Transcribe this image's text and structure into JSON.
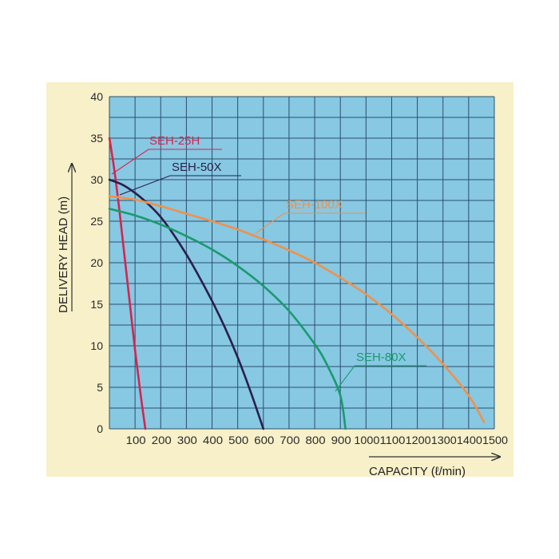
{
  "chart_data": {
    "type": "line",
    "xlabel": "CAPACITY (ℓ/min)",
    "ylabel": "DELIVERY HEAD (m)",
    "xlim": [
      0,
      1500
    ],
    "ylim": [
      0,
      40
    ],
    "x_ticks": [
      "100",
      "200",
      "300",
      "400",
      "500",
      "600",
      "700",
      "800",
      "900",
      "1000",
      "1100",
      "1200",
      "1300",
      "1400",
      "1500"
    ],
    "y_ticks": [
      "0",
      "5",
      "10",
      "15",
      "20",
      "25",
      "30",
      "35",
      "40"
    ],
    "grid": true,
    "series": [
      {
        "name": "SEH-25H",
        "color": "#d8234f",
        "points": [
          [
            0,
            35
          ],
          [
            20,
            31
          ],
          [
            40,
            26
          ],
          [
            60,
            20.5
          ],
          [
            80,
            15
          ],
          [
            100,
            9.5
          ],
          [
            120,
            4.5
          ],
          [
            140,
            0
          ]
        ]
      },
      {
        "name": "SEH-50X",
        "color": "#2a1f4a",
        "points": [
          [
            0,
            30
          ],
          [
            50,
            29.4
          ],
          [
            100,
            28.4
          ],
          [
            150,
            27.1
          ],
          [
            200,
            25.5
          ],
          [
            250,
            23.4
          ],
          [
            300,
            21
          ],
          [
            350,
            18.3
          ],
          [
            400,
            15.4
          ],
          [
            450,
            12.2
          ],
          [
            500,
            8.6
          ],
          [
            550,
            4.5
          ],
          [
            600,
            0
          ]
        ]
      },
      {
        "name": "SEH-100X",
        "color": "#f0914a",
        "points": [
          [
            0,
            28
          ],
          [
            100,
            27.6
          ],
          [
            200,
            26.8
          ],
          [
            300,
            25.9
          ],
          [
            400,
            25
          ],
          [
            500,
            24
          ],
          [
            600,
            22.8
          ],
          [
            700,
            21.5
          ],
          [
            800,
            20
          ],
          [
            900,
            18.2
          ],
          [
            1000,
            16.2
          ],
          [
            1100,
            13.8
          ],
          [
            1200,
            11
          ],
          [
            1300,
            7.8
          ],
          [
            1400,
            4
          ],
          [
            1460,
            0.8
          ]
        ]
      },
      {
        "name": "SEH-80X",
        "color": "#1a9a6e",
        "points": [
          [
            0,
            26.5
          ],
          [
            100,
            25.7
          ],
          [
            200,
            24.6
          ],
          [
            300,
            23.2
          ],
          [
            400,
            21.6
          ],
          [
            500,
            19.6
          ],
          [
            600,
            17.2
          ],
          [
            700,
            14.2
          ],
          [
            800,
            10.2
          ],
          [
            850,
            7.6
          ],
          [
            900,
            4
          ],
          [
            920,
            0
          ]
        ]
      }
    ]
  }
}
